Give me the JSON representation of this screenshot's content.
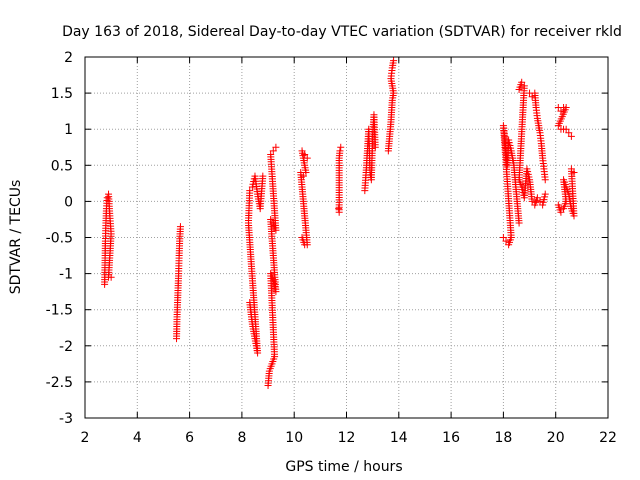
{
  "chart_data": {
    "type": "scatter",
    "title": "Day 163 of 2018, Sidereal Day-to-day VTEC variation (SDTVAR) for receiver rkld",
    "xlabel": "GPS time / hours",
    "ylabel": "SDTVAR / TECUs",
    "xlim": [
      2,
      22
    ],
    "ylim": [
      -3,
      2
    ],
    "xticks": [
      "2",
      "4",
      "6",
      "8",
      "10",
      "12",
      "14",
      "16",
      "18",
      "20",
      "22"
    ],
    "yticks": [
      "-3",
      "-2.5",
      "-2",
      "-1.5",
      "-1",
      "-0.5",
      "0",
      "0.5",
      "1",
      "1.5",
      "2"
    ],
    "grid": true,
    "marker": "plus",
    "color": "#ff0000",
    "segments": [
      [
        [
          2.75,
          -1.15
        ],
        [
          2.78,
          -0.55
        ],
        [
          2.8,
          -0.3
        ],
        [
          2.82,
          -0.1
        ],
        [
          2.85,
          0.05
        ],
        [
          2.9,
          0.1
        ],
        [
          2.95,
          -0.2
        ],
        [
          3.0,
          -0.45
        ],
        [
          2.9,
          -1.05
        ],
        [
          3.0,
          -1.05
        ]
      ],
      [
        [
          5.5,
          -1.9
        ],
        [
          5.52,
          -1.6
        ],
        [
          5.55,
          -1.3
        ],
        [
          5.58,
          -1.0
        ],
        [
          5.6,
          -0.75
        ],
        [
          5.62,
          -0.55
        ],
        [
          5.65,
          -0.35
        ]
      ],
      [
        [
          8.3,
          -1.4
        ],
        [
          8.4,
          -1.7
        ],
        [
          8.5,
          -1.9
        ],
        [
          8.6,
          -2.1
        ],
        [
          8.25,
          -0.3
        ],
        [
          8.3,
          0.15
        ],
        [
          8.4,
          0.2
        ],
        [
          8.5,
          0.35
        ],
        [
          8.6,
          0.1
        ],
        [
          8.7,
          -0.1
        ],
        [
          8.8,
          0.35
        ]
      ],
      [
        [
          9.0,
          -2.55
        ],
        [
          9.05,
          -2.35
        ],
        [
          9.15,
          -2.25
        ],
        [
          9.25,
          -2.15
        ],
        [
          9.1,
          -1.0
        ],
        [
          9.2,
          -1.1
        ],
        [
          9.3,
          -1.25
        ],
        [
          9.1,
          -0.25
        ],
        [
          9.2,
          -0.3
        ],
        [
          9.3,
          -0.4
        ],
        [
          9.1,
          0.65
        ],
        [
          9.2,
          0.7
        ],
        [
          9.3,
          0.75
        ]
      ],
      [
        [
          10.3,
          -0.5
        ],
        [
          10.4,
          -0.6
        ],
        [
          10.5,
          -0.6
        ],
        [
          10.25,
          0.4
        ],
        [
          10.35,
          0.35
        ],
        [
          10.45,
          0.4
        ],
        [
          10.3,
          0.7
        ],
        [
          10.4,
          0.65
        ],
        [
          10.5,
          0.6
        ]
      ],
      [
        [
          11.7,
          -0.1
        ],
        [
          11.72,
          -0.15
        ],
        [
          11.72,
          0.6
        ],
        [
          11.75,
          0.7
        ],
        [
          11.78,
          0.75
        ]
      ],
      [
        [
          12.7,
          0.15
        ],
        [
          12.75,
          0.4
        ],
        [
          12.8,
          0.7
        ],
        [
          12.85,
          1.0
        ],
        [
          12.9,
          0.4
        ],
        [
          12.95,
          0.3
        ],
        [
          13.0,
          0.9
        ],
        [
          13.05,
          1.2
        ],
        [
          13.1,
          0.75
        ]
      ],
      [
        [
          13.6,
          0.7
        ],
        [
          13.65,
          0.9
        ],
        [
          13.7,
          1.1
        ],
        [
          13.75,
          1.4
        ],
        [
          13.8,
          1.5
        ],
        [
          13.7,
          1.7
        ],
        [
          13.75,
          1.85
        ],
        [
          13.8,
          1.95
        ]
      ],
      [
        [
          18.0,
          -0.5
        ],
        [
          18.1,
          -0.55
        ],
        [
          18.2,
          -0.6
        ],
        [
          18.3,
          -0.5
        ],
        [
          18.0,
          1.05
        ],
        [
          18.05,
          0.9
        ],
        [
          18.1,
          0.7
        ],
        [
          18.15,
          0.5
        ],
        [
          18.2,
          0.85
        ],
        [
          18.3,
          0.7
        ],
        [
          18.4,
          0.5
        ],
        [
          18.45,
          0.3
        ],
        [
          18.5,
          0.1
        ],
        [
          18.55,
          -0.1
        ],
        [
          18.6,
          -0.3
        ]
      ],
      [
        [
          18.6,
          1.55
        ],
        [
          18.7,
          1.65
        ],
        [
          18.8,
          1.6
        ],
        [
          18.6,
          0.3
        ],
        [
          18.7,
          0.2
        ],
        [
          18.8,
          0.05
        ],
        [
          18.9,
          0.45
        ],
        [
          19.0,
          0.3
        ],
        [
          19.1,
          0.0
        ],
        [
          19.2,
          -0.05
        ],
        [
          19.3,
          0.05
        ],
        [
          19.4,
          0.0
        ],
        [
          19.5,
          -0.05
        ],
        [
          19.6,
          0.1
        ]
      ],
      [
        [
          19.0,
          1.5
        ],
        [
          19.1,
          1.45
        ],
        [
          19.2,
          1.5
        ],
        [
          19.25,
          1.3
        ],
        [
          19.3,
          1.15
        ],
        [
          19.35,
          1.05
        ],
        [
          19.4,
          0.95
        ],
        [
          19.45,
          0.8
        ],
        [
          19.5,
          0.6
        ],
        [
          19.55,
          0.45
        ],
        [
          19.6,
          0.3
        ]
      ],
      [
        [
          20.1,
          1.3
        ],
        [
          20.2,
          1.25
        ],
        [
          20.3,
          1.3
        ],
        [
          20.4,
          1.3
        ],
        [
          20.1,
          1.05
        ],
        [
          20.2,
          1.0
        ],
        [
          20.3,
          1.0
        ],
        [
          20.4,
          1.0
        ],
        [
          20.5,
          0.95
        ],
        [
          20.6,
          0.9
        ]
      ],
      [
        [
          20.1,
          -0.05
        ],
        [
          20.2,
          -0.15
        ],
        [
          20.3,
          -0.1
        ],
        [
          20.4,
          0.0
        ],
        [
          20.3,
          0.3
        ],
        [
          20.4,
          0.2
        ],
        [
          20.5,
          0.1
        ],
        [
          20.6,
          -0.1
        ],
        [
          20.7,
          -0.2
        ],
        [
          20.6,
          0.45
        ],
        [
          20.7,
          0.4
        ]
      ]
    ]
  }
}
